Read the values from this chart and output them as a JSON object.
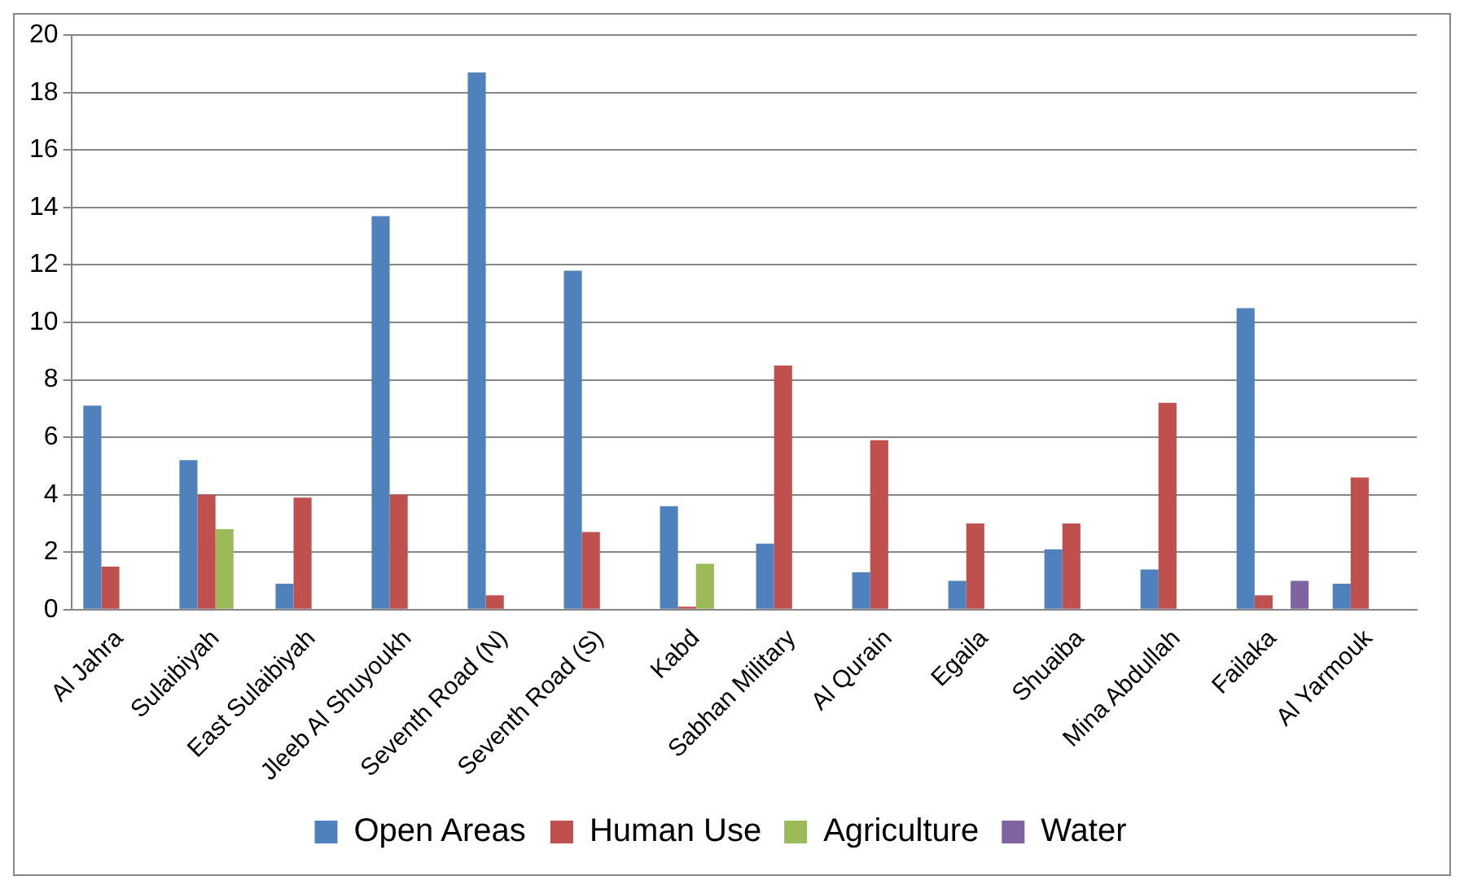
{
  "chart_data": {
    "type": "bar",
    "categories": [
      "Al Jahra",
      "Sulaibiyah",
      "East Sulaibiyah",
      "Jleeb Al Shuyoukh",
      "Seventh Road (N)",
      "Seventh Road (S)",
      "Kabd",
      "Sabhan Military",
      "Al Qurain",
      "Egaila",
      "Shuaiba",
      "Mina Abdullah",
      "Failaka",
      "Al Yarmouk"
    ],
    "series": [
      {
        "name": "Open Areas",
        "color": "#4f81bd",
        "values": [
          7.1,
          5.2,
          0.9,
          13.7,
          18.7,
          11.8,
          3.6,
          2.3,
          1.3,
          1.0,
          2.1,
          1.4,
          10.5,
          0.9
        ]
      },
      {
        "name": "Human Use",
        "color": "#c0504d",
        "values": [
          1.5,
          4.0,
          3.9,
          4.0,
          0.5,
          2.7,
          0.1,
          8.5,
          5.9,
          3.0,
          3.0,
          7.2,
          0.5,
          4.6
        ]
      },
      {
        "name": "Agriculture",
        "color": "#9bbb59",
        "values": [
          null,
          2.8,
          null,
          null,
          null,
          null,
          1.6,
          null,
          null,
          null,
          null,
          null,
          null,
          null
        ]
      },
      {
        "name": "Water",
        "color": "#8064a2",
        "values": [
          null,
          null,
          null,
          null,
          null,
          null,
          null,
          null,
          null,
          null,
          null,
          null,
          1.0,
          null
        ]
      }
    ],
    "ylim": [
      0,
      20
    ],
    "yticks": [
      0,
      2,
      4,
      6,
      8,
      10,
      12,
      14,
      16,
      18,
      20
    ],
    "grid": "y",
    "legend": "bottom"
  }
}
